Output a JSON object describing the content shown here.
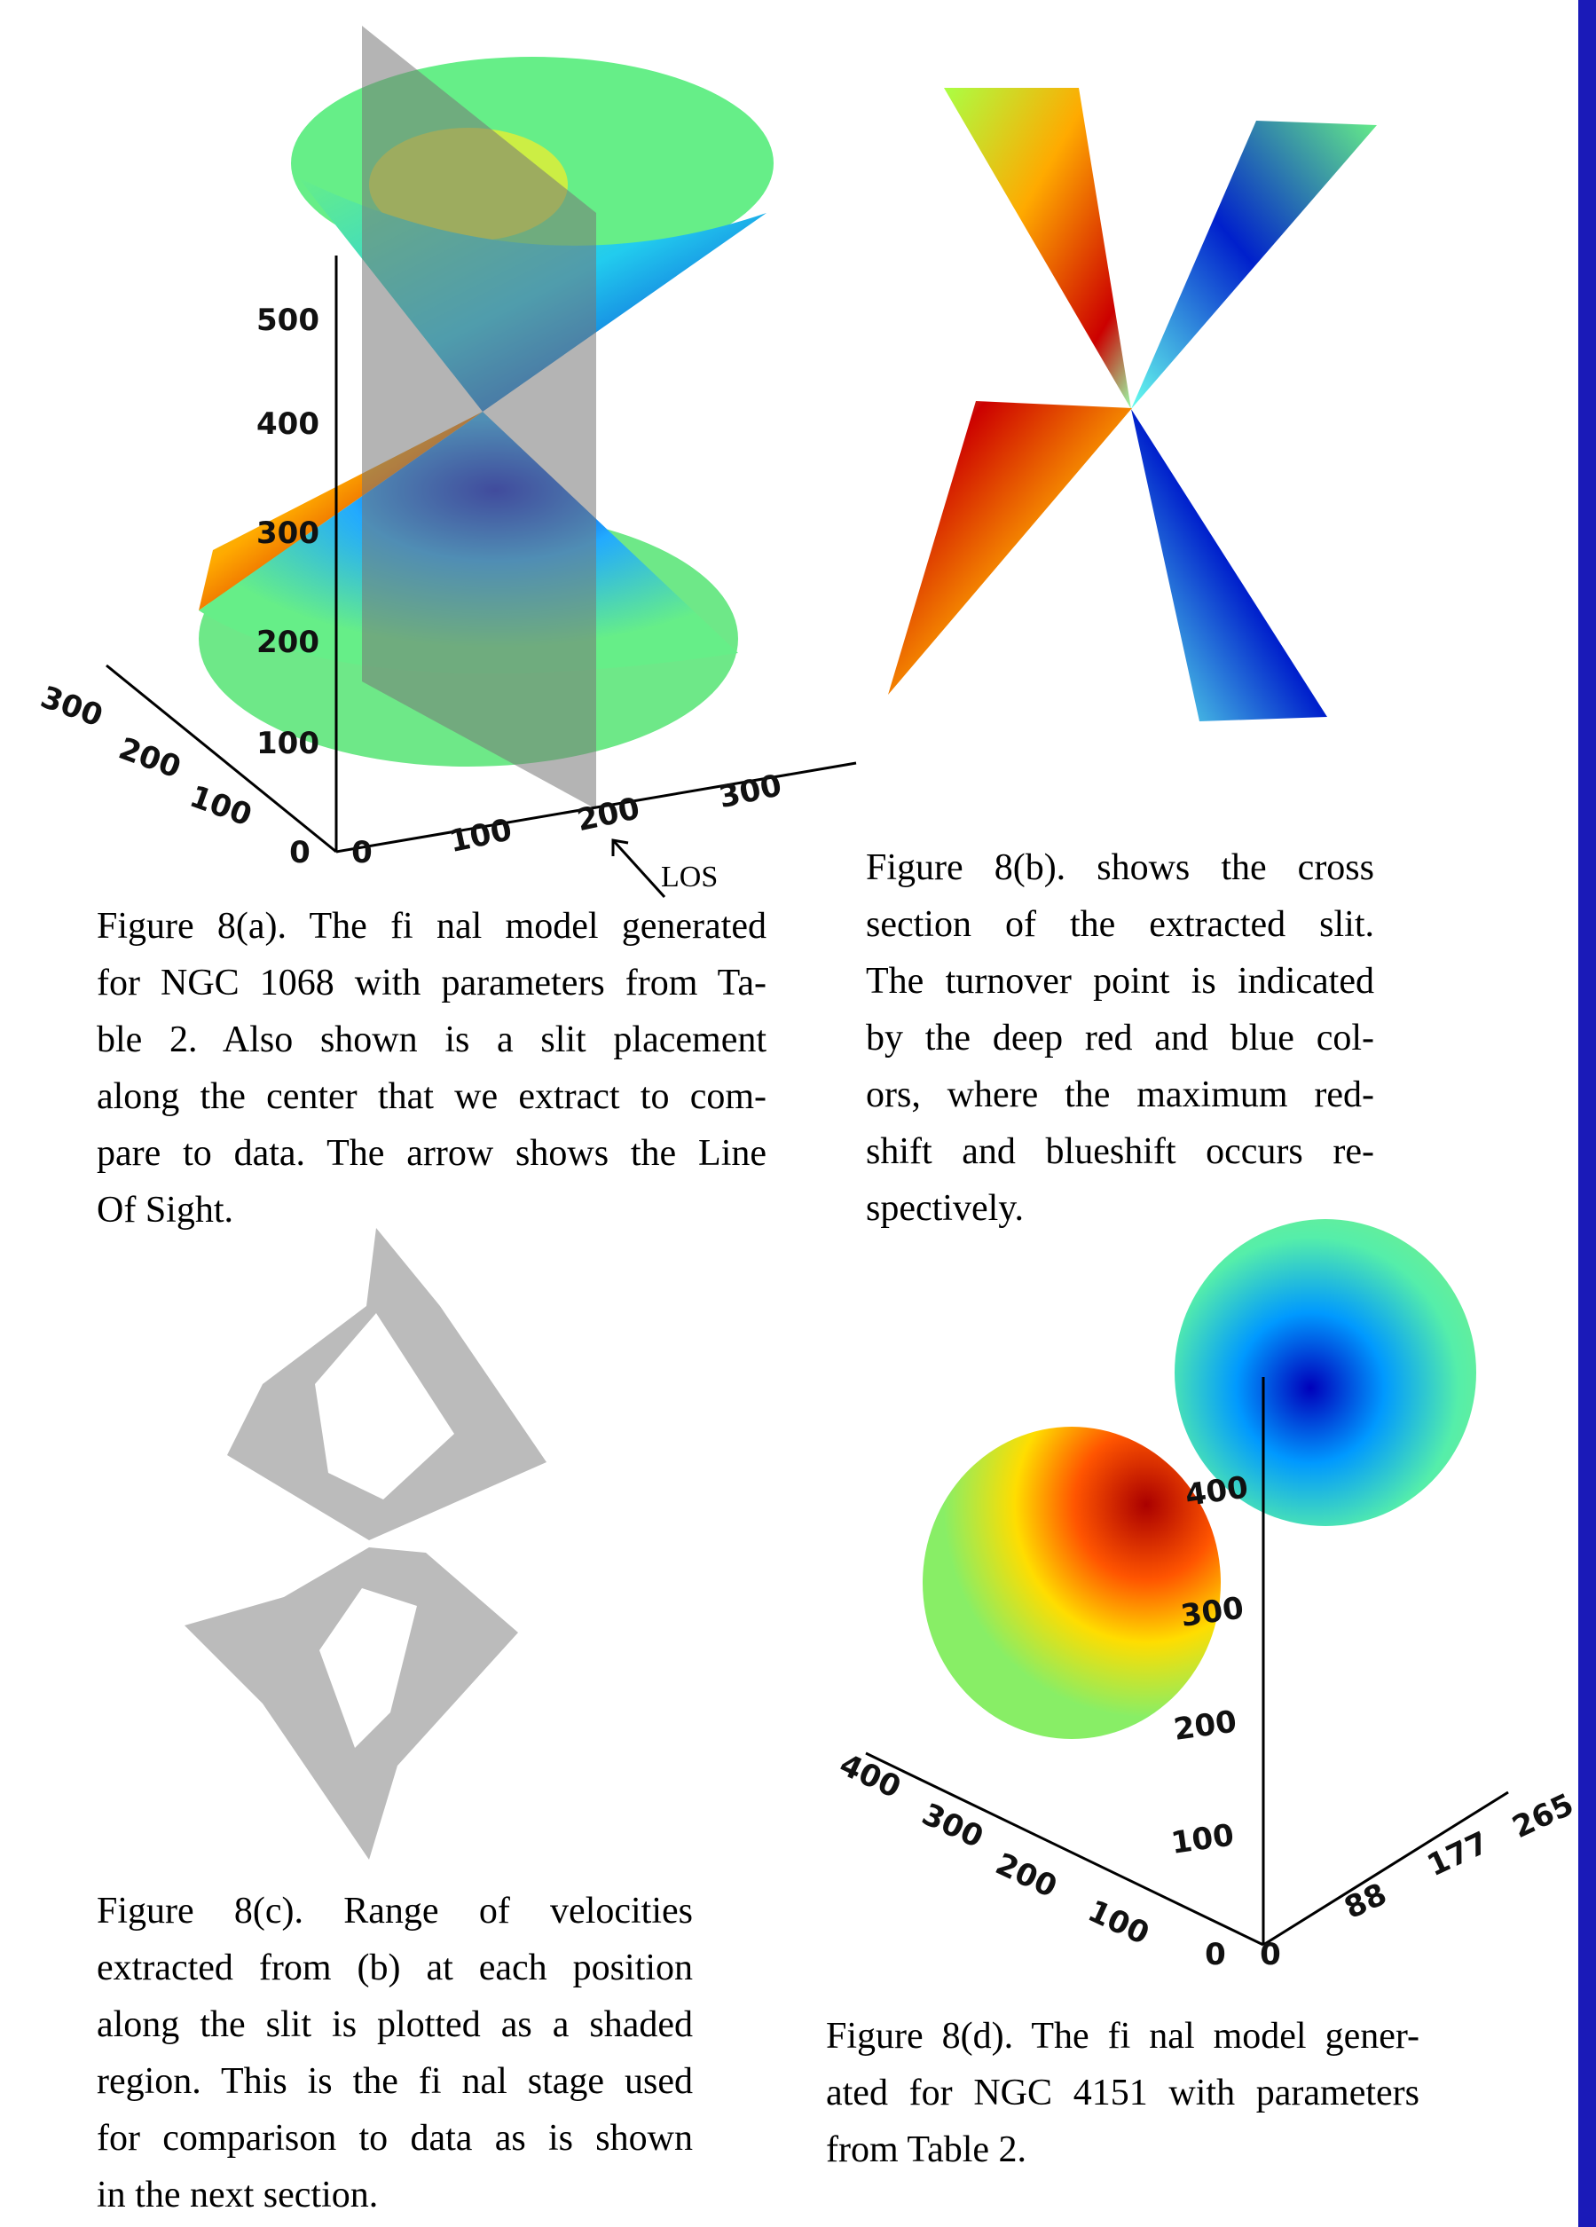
{
  "figure_a": {
    "z_ticks": [
      500,
      400,
      300,
      200,
      100
    ],
    "x_ticks": [
      100,
      200,
      300
    ],
    "y_ticks": [
      300,
      200,
      100
    ],
    "origin": 0,
    "los": "LOS",
    "caption": [
      "Figure 8(a).  The fi nal model generated",
      "for NGC 1068 with parameters from Ta-",
      "ble 2.  Also shown is a slit placement",
      "along the center that we extract to com-",
      "pare to data.  The arrow shows the Line",
      "Of Sight."
    ]
  },
  "figure_b": {
    "caption": [
      "Figure 8(b).   shows the cross",
      "section of the extracted slit.",
      "The turnover point is indicated",
      "by the deep red and blue col-",
      "ors, where the maximum red-",
      "shift and blueshift occurs re-",
      "spectively."
    ]
  },
  "figure_c": {
    "caption": [
      "Figure 8(c).   Range of velocities",
      "extracted from (b) at each position",
      "along the slit is plotted as a shaded",
      "region.  This is the fi nal stage used",
      "for comparison to data as is shown",
      "in the next section."
    ]
  },
  "figure_d": {
    "z_ticks": [
      400,
      300,
      200,
      100
    ],
    "y_ticks": [
      400,
      300,
      200,
      100
    ],
    "x_ticks": [
      88,
      177,
      265
    ],
    "origin": 0,
    "caption": [
      "Figure 8(d).  The fi nal model gener-",
      "ated for NGC 4151 with parameters",
      "from Table 2."
    ]
  }
}
